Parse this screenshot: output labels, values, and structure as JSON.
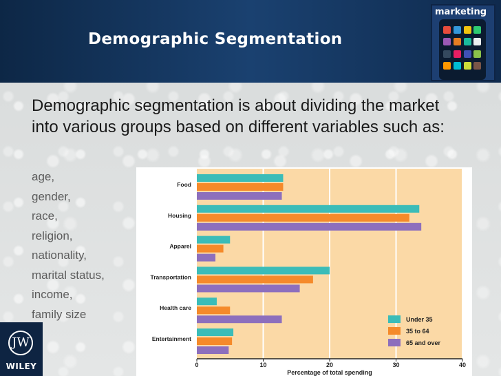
{
  "slide": {
    "title": "Demographic Segmentation",
    "body": "Demographic segmentation is about dividing the market into various groups based on different variables such as:",
    "list": [
      "age,",
      "gender,",
      "race,",
      "religion,",
      "nationality,",
      "marital status,",
      "income,",
      "family size"
    ]
  },
  "book_cover": {
    "label": "marketing"
  },
  "publisher_logo": {
    "text": "WILEY",
    "mark": "JW"
  },
  "colors": {
    "header": "#143561",
    "under35": "#3bbcb8",
    "age35to64": "#f58a2a",
    "age65plus": "#8d6fbd",
    "plot_bg": "#fbd9a6"
  },
  "chart_data": {
    "type": "bar",
    "orientation": "horizontal",
    "categories": [
      "Food",
      "Housing",
      "Apparel",
      "Transportation",
      "Health care",
      "Entertainment"
    ],
    "series": [
      {
        "name": "Under 35",
        "values": [
          13,
          33.5,
          5,
          20,
          3,
          5.5
        ]
      },
      {
        "name": "35 to 64",
        "values": [
          13,
          32,
          4,
          17.5,
          5,
          5.3
        ]
      },
      {
        "name": "65 and over",
        "values": [
          12.8,
          33.8,
          2.8,
          15.5,
          12.8,
          4.8
        ]
      }
    ],
    "xlabel": "Percentage of total spending",
    "xticks": [
      "0",
      "10",
      "20",
      "30",
      "40"
    ],
    "xlim": [
      0,
      40
    ],
    "grid": true,
    "legend_position": "bottom-right"
  }
}
